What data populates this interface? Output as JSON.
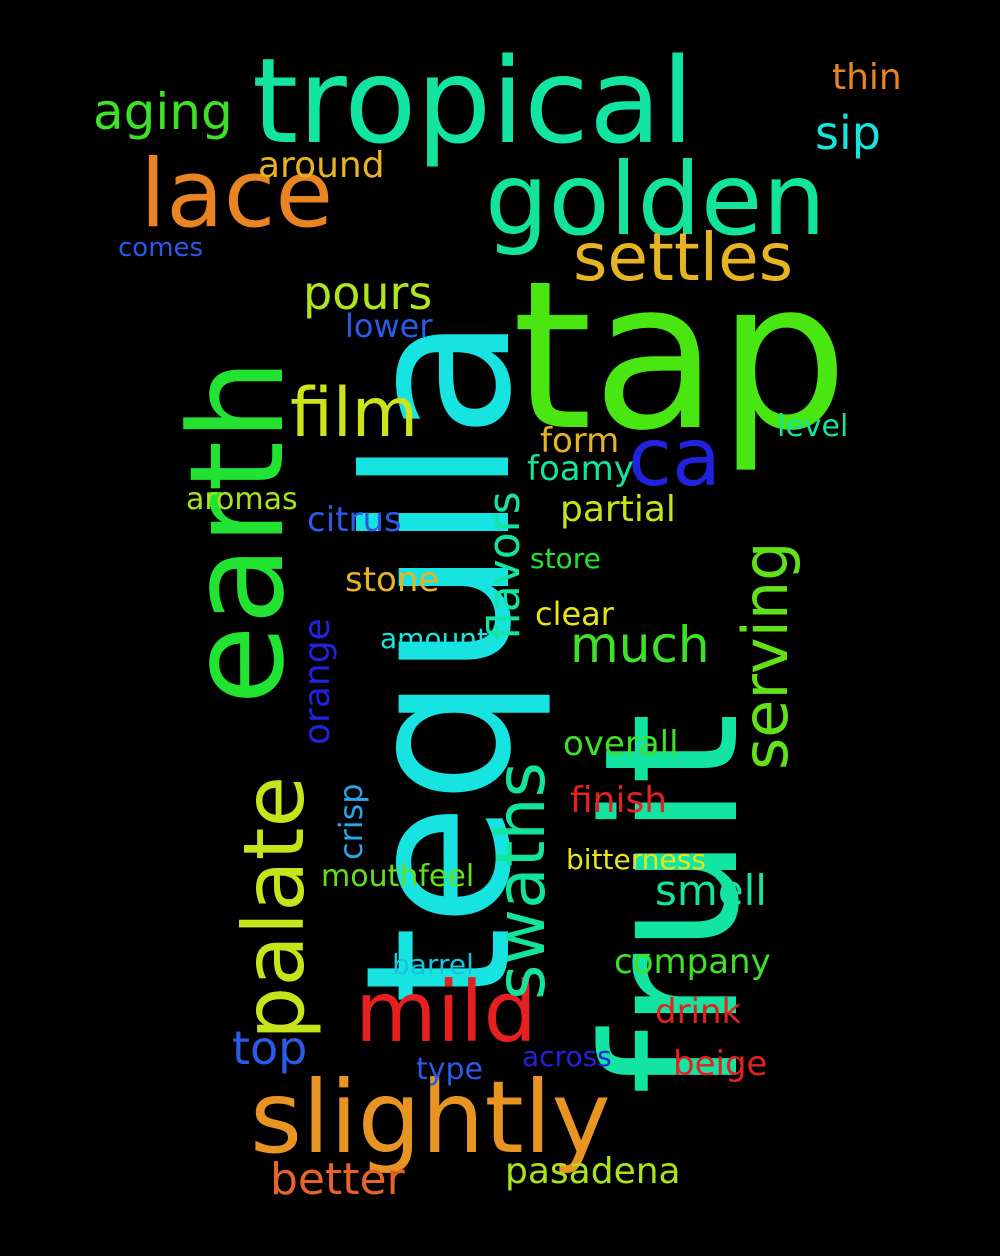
{
  "words": [
    {
      "text": "tap",
      "color": "#4ae612",
      "orientation": "horizontal"
    },
    {
      "text": "tequila",
      "color": "#17e4e0",
      "orientation": "vertical"
    },
    {
      "text": "fruit",
      "color": "#14e4a2",
      "orientation": "vertical"
    },
    {
      "text": "tropical",
      "color": "#14e4a2",
      "orientation": "horizontal"
    },
    {
      "text": "earth",
      "color": "#22e232",
      "orientation": "vertical"
    },
    {
      "text": "golden",
      "color": "#14e49a",
      "orientation": "horizontal"
    },
    {
      "text": "slightly",
      "color": "#e89422",
      "orientation": "horizontal"
    },
    {
      "text": "palate",
      "color": "#c6e41a",
      "orientation": "vertical"
    },
    {
      "text": "lace",
      "color": "#e88422",
      "orientation": "horizontal"
    },
    {
      "text": "mild",
      "color": "#e62020",
      "orientation": "horizontal"
    },
    {
      "text": "swaths",
      "color": "#14e49a",
      "orientation": "vertical"
    },
    {
      "text": "settles",
      "color": "#e6b422",
      "orientation": "horizontal"
    },
    {
      "text": "film",
      "color": "#cce41a",
      "orientation": "horizontal"
    },
    {
      "text": "serving",
      "color": "#62e01a",
      "orientation": "vertical"
    },
    {
      "text": "ca",
      "color": "#2222dc",
      "orientation": "horizontal"
    },
    {
      "text": "much",
      "color": "#3ee028",
      "orientation": "horizontal"
    },
    {
      "text": "pours",
      "color": "#b2e41c",
      "orientation": "horizontal"
    },
    {
      "text": "aging",
      "color": "#3ee028",
      "orientation": "horizontal"
    },
    {
      "text": "flavors",
      "color": "#14e4a2",
      "orientation": "vertical"
    },
    {
      "text": "top",
      "color": "#2a5ae6",
      "orientation": "horizontal"
    },
    {
      "text": "better",
      "color": "#e6642a",
      "orientation": "horizontal"
    },
    {
      "text": "pasadena",
      "color": "#a8e41c",
      "orientation": "horizontal"
    },
    {
      "text": "smell",
      "color": "#14e4a2",
      "orientation": "horizontal"
    },
    {
      "text": "orange",
      "color": "#2222dc",
      "orientation": "vertical"
    },
    {
      "text": "sip",
      "color": "#17e4e0",
      "orientation": "horizontal"
    },
    {
      "text": "around",
      "color": "#e6b422",
      "orientation": "horizontal"
    },
    {
      "text": "thin",
      "color": "#e88422",
      "orientation": "horizontal"
    },
    {
      "text": "form",
      "color": "#e6b422",
      "orientation": "horizontal"
    },
    {
      "text": "foamy",
      "color": "#14e4a2",
      "orientation": "horizontal"
    },
    {
      "text": "partial",
      "color": "#c6e41a",
      "orientation": "horizontal"
    },
    {
      "text": "citrus",
      "color": "#2a5ae6",
      "orientation": "horizontal"
    },
    {
      "text": "stone",
      "color": "#e6b422",
      "orientation": "horizontal"
    },
    {
      "text": "clear",
      "color": "#e6e41a",
      "orientation": "horizontal"
    },
    {
      "text": "overall",
      "color": "#3ee028",
      "orientation": "horizontal"
    },
    {
      "text": "finish",
      "color": "#e62020",
      "orientation": "horizontal"
    },
    {
      "text": "company",
      "color": "#3ee028",
      "orientation": "horizontal"
    },
    {
      "text": "drink",
      "color": "#e62020",
      "orientation": "horizontal"
    },
    {
      "text": "beige",
      "color": "#e62020",
      "orientation": "horizontal"
    },
    {
      "text": "lower",
      "color": "#2a5ae6",
      "orientation": "horizontal"
    },
    {
      "text": "level",
      "color": "#14e49a",
      "orientation": "horizontal"
    },
    {
      "text": "aromas",
      "color": "#a8e41c",
      "orientation": "horizontal"
    },
    {
      "text": "store",
      "color": "#22e232",
      "orientation": "horizontal"
    },
    {
      "text": "amount",
      "color": "#17e4e0",
      "orientation": "horizontal"
    },
    {
      "text": "crisp",
      "color": "#2aa6e6",
      "orientation": "vertical"
    },
    {
      "text": "bitterness",
      "color": "#e6e41a",
      "orientation": "horizontal"
    },
    {
      "text": "mouthfeel",
      "color": "#62e01a",
      "orientation": "horizontal"
    },
    {
      "text": "barrel",
      "color": "#17c4e0",
      "orientation": "horizontal"
    },
    {
      "text": "type",
      "color": "#2a5ae6",
      "orientation": "horizontal"
    },
    {
      "text": "across",
      "color": "#2222dc",
      "orientation": "horizontal"
    },
    {
      "text": "comes",
      "color": "#2a5ae6",
      "orientation": "horizontal"
    }
  ]
}
